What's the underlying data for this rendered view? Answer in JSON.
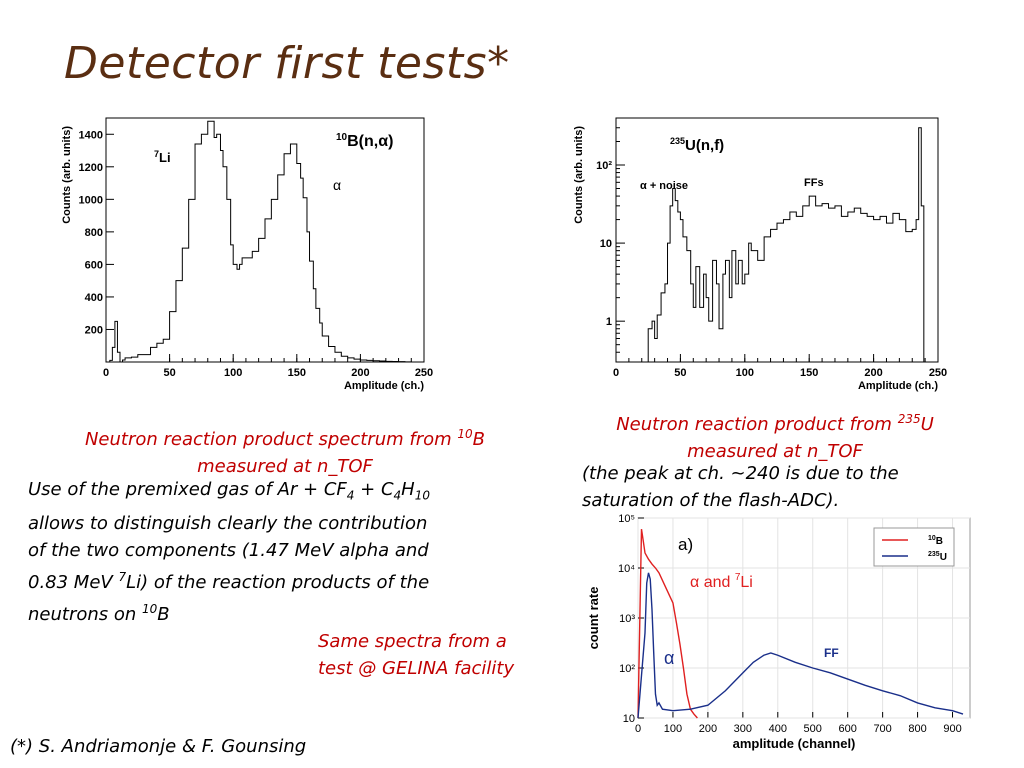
{
  "title": "Detector first tests*",
  "footnote": "(*) S. Andriamonje & F. Gounsing",
  "captions": {
    "b10_line1a": "Neutron reaction product spectrum from ",
    "b10_line1_sup": "10",
    "b10_line1b": "B",
    "b10_line2": "measured at n_TOF",
    "gas_1": "Use of the premixed gas of Ar + CF",
    "gas_sub4": "4",
    "gas_2": " + C",
    "gas_sub4b": "4",
    "gas_3": "H",
    "gas_sub10": "10",
    "gas_line2": " allows to distinguish clearly the contribution",
    "gas_line3": "of the two components (1.47 MeV alpha and",
    "gas_line4a": "0.83 MeV ",
    "gas_line4_sup": "7",
    "gas_line4b": "Li)  of the reaction products of the",
    "gas_line5a": "neutrons on ",
    "gas_line5_sup": "10",
    "gas_line5b": "B",
    "u_line1a": "Neutron reaction product from ",
    "u_line1_sup": "235",
    "u_line1b": "U",
    "u_line2": "measured at n_TOF",
    "u_line3": "(the peak at ch. ~240 is due to the",
    "u_line4": "saturation of the flash-ADC).",
    "gelina_line1": "Same spectra from a",
    "gelina_line2": "test @ GELINA facility"
  },
  "chart_data": [
    {
      "type": "line",
      "title": "10B(n,α)",
      "xlabel": "Amplitude (ch.)",
      "ylabel": "Counts (arb. units)",
      "xlim": [
        0,
        250
      ],
      "ylim": [
        0,
        1500
      ],
      "xticks": [
        0,
        50,
        100,
        150,
        200,
        250
      ],
      "yticks": [
        200,
        400,
        600,
        800,
        1000,
        1200,
        1400
      ],
      "annotations": [
        "7Li",
        "α"
      ],
      "x": [
        0,
        3,
        5,
        7,
        9,
        11,
        13,
        15,
        20,
        25,
        30,
        35,
        40,
        45,
        50,
        55,
        60,
        65,
        70,
        75,
        80,
        83,
        85,
        87,
        90,
        92,
        95,
        98,
        100,
        103,
        105,
        107,
        110,
        115,
        120,
        125,
        130,
        135,
        140,
        145,
        150,
        153,
        155,
        158,
        160,
        163,
        165,
        168,
        170,
        175,
        180,
        185,
        190,
        195,
        200,
        205,
        210,
        215,
        220,
        225,
        230,
        235,
        240,
        245,
        250
      ],
      "values": [
        0,
        10,
        90,
        250,
        60,
        0,
        12,
        25,
        30,
        45,
        45,
        90,
        115,
        140,
        310,
        500,
        700,
        1000,
        1340,
        1400,
        1480,
        1480,
        1380,
        1400,
        1300,
        1200,
        1000,
        720,
        600,
        570,
        600,
        640,
        640,
        680,
        760,
        880,
        1000,
        1150,
        1280,
        1340,
        1220,
        1130,
        1010,
        800,
        620,
        450,
        330,
        240,
        160,
        95,
        60,
        35,
        25,
        18,
        12,
        10,
        8,
        6,
        4,
        3,
        2,
        1,
        0,
        0,
        0
      ],
      "series_color": "#000000"
    },
    {
      "type": "line",
      "title": "235U(n,f)",
      "xlabel": "Amplitude (ch.)",
      "ylabel": "Counts (arb. units)",
      "xlim": [
        0,
        250
      ],
      "ylim": [
        0.3,
        400
      ],
      "yscale": "log",
      "xticks": [
        0,
        50,
        100,
        150,
        200,
        250
      ],
      "yticks": [
        1,
        10,
        100
      ],
      "ytick_labels": [
        "1",
        "10",
        "10²"
      ],
      "annotations": [
        "α + noise",
        "FFs"
      ],
      "x": [
        22,
        25,
        28,
        30,
        32,
        35,
        38,
        40,
        42,
        44,
        46,
        48,
        50,
        52,
        55,
        58,
        60,
        62,
        65,
        68,
        70,
        72,
        75,
        78,
        80,
        83,
        85,
        88,
        90,
        93,
        95,
        98,
        100,
        103,
        105,
        110,
        115,
        120,
        125,
        130,
        135,
        140,
        145,
        150,
        155,
        160,
        165,
        170,
        175,
        180,
        185,
        190,
        195,
        200,
        205,
        210,
        215,
        220,
        225,
        230,
        233,
        235,
        237,
        239,
        241
      ],
      "values": [
        0.3,
        0.8,
        1,
        0.6,
        1.2,
        2.3,
        3,
        10,
        30,
        50,
        35,
        25,
        20,
        12,
        8,
        3,
        1.5,
        5,
        1.5,
        4,
        2,
        1,
        6,
        3,
        0.8,
        4,
        6,
        2,
        8,
        3,
        6,
        3,
        4,
        10,
        8,
        6,
        12,
        15,
        18,
        20,
        25,
        22,
        30,
        40,
        30,
        32,
        28,
        30,
        22,
        25,
        28,
        24,
        22,
        20,
        22,
        18,
        24,
        20,
        14,
        15,
        20,
        300,
        30,
        0.3,
        0.3
      ],
      "series_color": "#000000"
    },
    {
      "type": "line",
      "title": "a)",
      "xlabel": "amplitude (channel)",
      "ylabel": "count rate",
      "xlim": [
        0,
        950
      ],
      "ylim": [
        10,
        100000
      ],
      "yscale": "log",
      "xticks": [
        0,
        100,
        200,
        300,
        400,
        500,
        600,
        700,
        800,
        900
      ],
      "yticks": [
        10,
        100,
        1000,
        10000,
        100000
      ],
      "ytick_labels": [
        "10",
        "10²",
        "10³",
        "10⁴",
        "10⁵"
      ],
      "annotations": [
        "α and 7Li",
        "α",
        "FF"
      ],
      "legend": "top-right",
      "series": [
        {
          "name": "10B",
          "color": "#e02020",
          "x": [
            0,
            10,
            15,
            20,
            30,
            40,
            50,
            60,
            80,
            100,
            110,
            120,
            130,
            140,
            150,
            160,
            170
          ],
          "values": [
            10,
            60000,
            35000,
            20000,
            15000,
            12000,
            10000,
            8000,
            4000,
            2000,
            800,
            300,
            100,
            30,
            15,
            12,
            10
          ]
        },
        {
          "name": "235U",
          "color": "#1a2f8a",
          "x": [
            0,
            20,
            25,
            30,
            35,
            40,
            45,
            50,
            55,
            60,
            70,
            100,
            150,
            200,
            250,
            300,
            330,
            360,
            380,
            400,
            450,
            500,
            550,
            600,
            650,
            700,
            750,
            800,
            850,
            900,
            930
          ],
          "values": [
            10,
            500,
            5000,
            8000,
            6000,
            1500,
            200,
            30,
            18,
            20,
            15,
            14,
            15,
            18,
            35,
            80,
            130,
            180,
            200,
            180,
            130,
            100,
            80,
            60,
            45,
            35,
            28,
            20,
            16,
            14,
            12
          ]
        }
      ]
    }
  ]
}
